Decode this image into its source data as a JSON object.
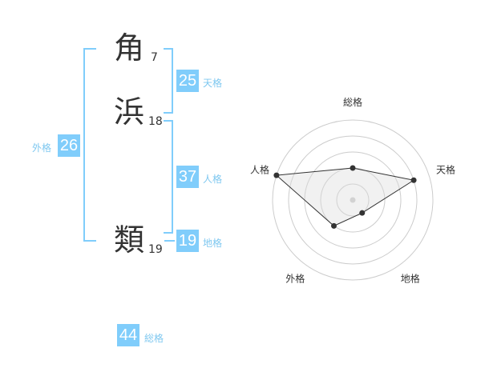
{
  "name": {
    "chars": [
      {
        "char": "角",
        "strokes": "7"
      },
      {
        "char": "浜",
        "strokes": "18"
      },
      {
        "char": "類",
        "strokes": "19"
      }
    ]
  },
  "fortunes": {
    "tenkaku": {
      "label": "天格",
      "value": "25"
    },
    "jinkaku": {
      "label": "人格",
      "value": "37"
    },
    "chikaku": {
      "label": "地格",
      "value": "19"
    },
    "gaikaku": {
      "label": "外格",
      "value": "26"
    },
    "soukaku": {
      "label": "総格",
      "value": "44"
    }
  },
  "colors": {
    "accent": "#80cdfb",
    "label": "#7fc8f0"
  },
  "chart_data": {
    "type": "radar",
    "axes": [
      "総格",
      "天格",
      "地格",
      "外格",
      "人格"
    ],
    "values": [
      2,
      4,
      1,
      2,
      5
    ],
    "range": [
      0,
      5
    ],
    "rings": 5
  }
}
